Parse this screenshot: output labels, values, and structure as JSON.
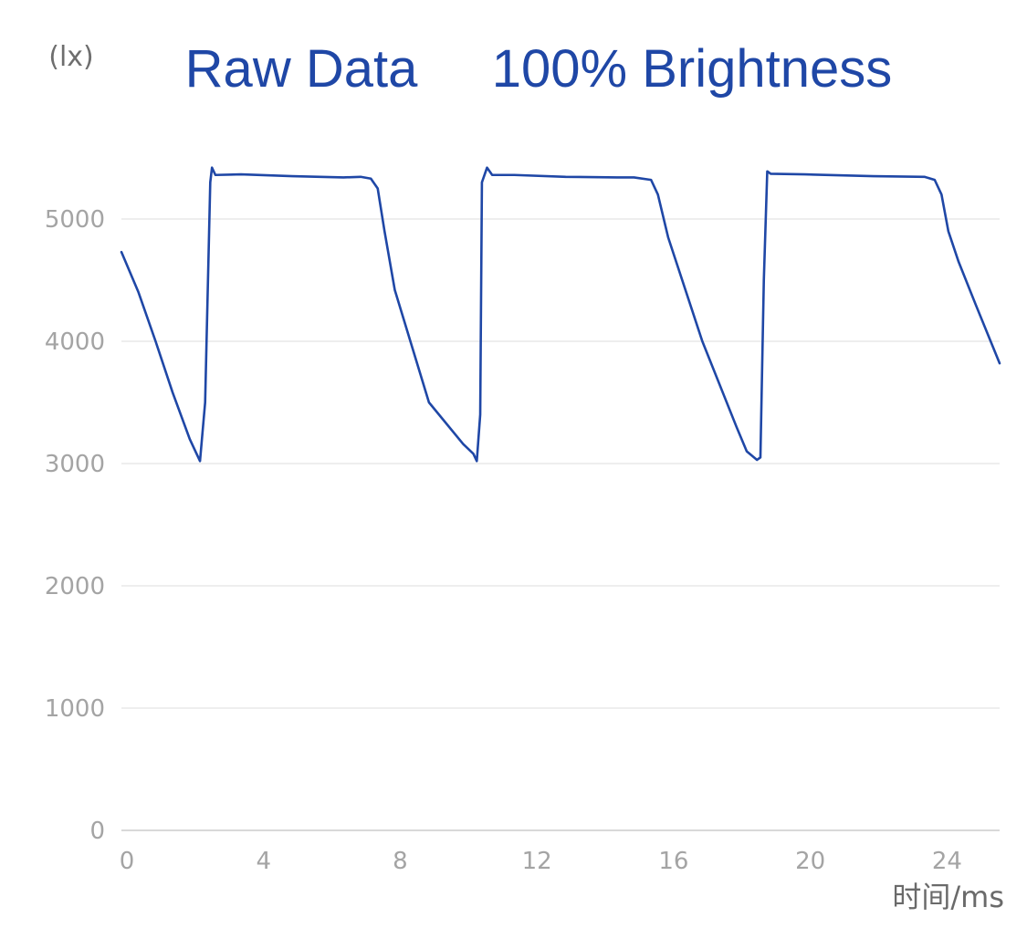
{
  "chart_data": {
    "type": "line",
    "title": "Raw Data",
    "subtitle": "100% Brightness",
    "ylabel": "(lx)",
    "xlabel": "时间/ms",
    "ylim": [
      0,
      5500
    ],
    "xlim": [
      0,
      25.7
    ],
    "y_ticks": [
      0,
      1000,
      2000,
      3000,
      4000,
      5000
    ],
    "x_ticks": [
      0,
      4,
      8,
      12,
      16,
      20,
      24
    ],
    "grid": true,
    "legend": "none",
    "colors": {
      "line": "#1f47a6",
      "title": "#1f47a6",
      "grid": "#eeeeee",
      "tick_label": "#a4a4a4"
    },
    "series": [
      {
        "x": [
          0,
          0.5,
          1.0,
          1.5,
          2.0,
          2.2,
          2.3,
          2.45,
          2.6,
          2.65,
          2.75,
          3.5,
          5.0,
          6.5,
          7.0,
          7.3,
          7.5,
          7.7,
          8.0,
          9.0,
          10.0,
          10.3,
          10.4,
          10.5,
          10.55,
          10.7,
          10.85,
          11.5,
          13.0,
          14.5,
          15.0,
          15.5,
          15.7,
          16.0,
          17.0,
          18.0,
          18.3,
          18.6,
          18.7,
          18.8,
          18.9,
          19.0,
          20.0,
          22.0,
          23.5,
          23.8,
          24.0,
          24.2,
          24.5,
          25.0,
          25.7
        ],
        "y": [
          4730,
          4400,
          4000,
          3580,
          3200,
          3080,
          3020,
          3500,
          5300,
          5420,
          5360,
          5365,
          5350,
          5340,
          5345,
          5330,
          5250,
          4900,
          4420,
          3500,
          3160,
          3080,
          3020,
          3400,
          5300,
          5420,
          5360,
          5360,
          5345,
          5340,
          5340,
          5320,
          5200,
          4850,
          4000,
          3300,
          3100,
          3030,
          3050,
          4500,
          5390,
          5370,
          5365,
          5350,
          5345,
          5320,
          5200,
          4900,
          4650,
          4300,
          3820
        ]
      }
    ]
  }
}
